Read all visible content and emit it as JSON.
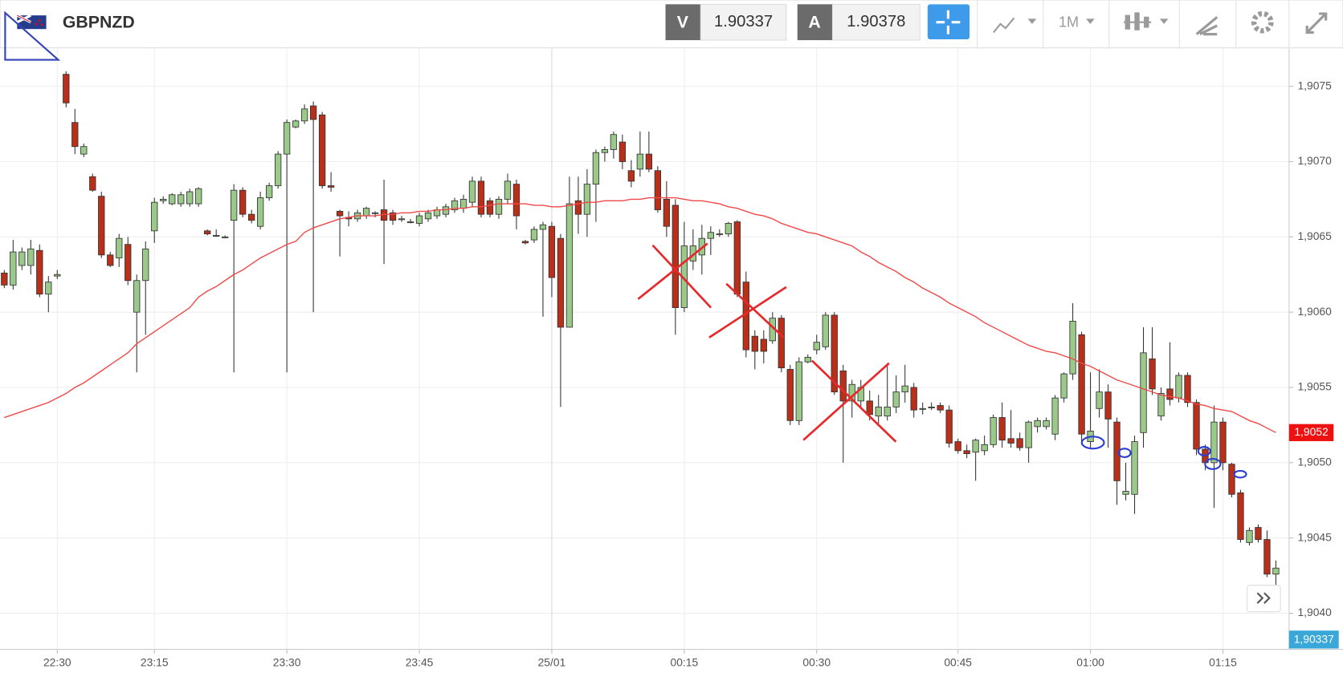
{
  "toolbar": {
    "symbol": "GBPNZD",
    "bid_tag": "V",
    "bid": "1.90337",
    "ask_tag": "A",
    "ask": "1.90378",
    "timeframe": "1M"
  },
  "chart_data": {
    "type": "candlestick",
    "categories": [
      null,
      null,
      null,
      null,
      null,
      null,
      "22:30",
      null,
      null,
      null,
      null,
      null,
      null,
      null,
      null,
      null,
      null,
      "23:15",
      null,
      null,
      null,
      null,
      null,
      null,
      null,
      null,
      null,
      null,
      null,
      null,
      null,
      null,
      "23:30",
      null,
      null,
      null,
      null,
      null,
      null,
      null,
      null,
      null,
      null,
      null,
      null,
      null,
      null,
      "23:45",
      null,
      null,
      null,
      null,
      null,
      null,
      null,
      null,
      null,
      null,
      null,
      null,
      null,
      null,
      "25/01",
      null,
      null,
      null,
      null,
      null,
      null,
      null,
      null,
      null,
      null,
      null,
      null,
      null,
      null,
      "00:15",
      null,
      null,
      null,
      null,
      null,
      null,
      null,
      null,
      null,
      null,
      null,
      null,
      null,
      null,
      "00:30",
      null,
      null,
      null,
      null,
      null,
      null,
      null,
      null,
      null,
      null,
      null,
      null,
      null,
      null,
      null,
      "00:45",
      null,
      null,
      null,
      null,
      null,
      null,
      null,
      null,
      null,
      null,
      null,
      null,
      null,
      null,
      "01:00",
      null,
      null,
      null,
      null,
      null,
      null,
      null,
      null,
      null,
      null,
      null,
      null,
      null,
      null,
      "01:15",
      null,
      null,
      null,
      null,
      null,
      null
    ],
    "open": [
      1.90626,
      1.90618,
      1.90631,
      1.90631,
      1.90641,
      1.90612,
      1.90624,
      1.90758,
      1.90726,
      1.90705,
      1.9069,
      1.90677,
      1.90638,
      1.90636,
      1.90645,
      1.906,
      1.90621,
      1.90654,
      1.90674,
      1.90672,
      1.90672,
      1.90672,
      1.90672,
      1.90654,
      1.90651,
      1.9065,
      1.90661,
      1.90681,
      1.90665,
      1.90657,
      1.90676,
      1.90684,
      1.90705,
      1.90723,
      1.90727,
      1.90737,
      1.90731,
      1.90684,
      1.90667,
      1.90663,
      1.90662,
      1.90664,
      1.90666,
      1.90668,
      1.90666,
      1.90662,
      1.9066,
      1.90659,
      1.90662,
      1.90664,
      1.90665,
      1.90668,
      1.90669,
      1.90673,
      1.90687,
      1.90674,
      1.90665,
      1.90675,
      1.90685,
      1.90647,
      1.90648,
      1.90655,
      1.90657,
      1.90649,
      1.9059,
      1.90674,
      1.90665,
      1.90685,
      1.90706,
      1.90708,
      1.90713,
      1.90694,
      1.90695,
      1.90705,
      1.90694,
      1.90675,
      1.90671,
      1.90603,
      1.90634,
      1.90638,
      1.90649,
      1.90652,
      1.90652,
      1.9066,
      1.9062,
      1.90584,
      1.90582,
      1.90581,
      1.90596,
      1.90562,
      1.90528,
      1.90567,
      1.90575,
      1.90577,
      1.90598,
      1.90561,
      1.90541,
      1.90541,
      1.90541,
      1.90531,
      1.90531,
      1.90537,
      1.90547,
      1.9055,
      1.90536,
      1.90537,
      1.90538,
      1.90535,
      1.90514,
      1.90508,
      1.90507,
      1.90508,
      1.90512,
      1.9053,
      1.90516,
      1.90516,
      1.9051,
      1.90524,
      1.90524,
      1.90519,
      1.90543,
      1.90559,
      1.90585,
      1.90514,
      1.90536,
      1.90547,
      1.90527,
      1.90479,
      1.90479,
      1.9052,
      1.90569,
      1.90531,
      1.90549,
      1.90543,
      1.90558,
      1.9054,
      1.90509,
      1.905,
      1.90527,
      1.90499,
      1.9048,
      1.90447,
      1.90457,
      1.90449,
      1.90426
    ],
    "high": [
      1.90628,
      1.90648,
      1.90643,
      1.90648,
      1.90645,
      1.90624,
      1.90628,
      1.9076,
      1.90735,
      1.90712,
      1.90692,
      1.9068,
      1.9064,
      1.90652,
      1.9065,
      1.90625,
      1.90647,
      1.90676,
      1.90677,
      1.90679,
      1.9068,
      1.90682,
      1.90683,
      1.90655,
      1.90655,
      1.90651,
      1.90685,
      1.90683,
      1.90668,
      1.9068,
      1.90686,
      1.90707,
      1.90728,
      1.90728,
      1.90738,
      1.9074,
      1.90733,
      1.90693,
      1.90668,
      1.90667,
      1.90668,
      1.9067,
      1.90667,
      1.90688,
      1.90668,
      1.90664,
      1.90662,
      1.90666,
      1.90668,
      1.9067,
      1.90672,
      1.90676,
      1.90678,
      1.9069,
      1.9069,
      1.90676,
      1.90677,
      1.90692,
      1.90688,
      1.90648,
      1.90657,
      1.9066,
      1.9066,
      1.90652,
      1.9069,
      1.9069,
      1.90695,
      1.90708,
      1.9071,
      1.9072,
      1.90718,
      1.90701,
      1.9072,
      1.9072,
      1.90697,
      1.90687,
      1.90675,
      1.9066,
      1.90655,
      1.90658,
      1.90657,
      1.90655,
      1.9066,
      1.90661,
      1.90627,
      1.90588,
      1.90588,
      1.906,
      1.90598,
      1.90565,
      1.9057,
      1.90572,
      1.90585,
      1.906,
      1.906,
      1.90565,
      1.90555,
      1.90555,
      1.90548,
      1.90545,
      1.90565,
      1.90558,
      1.90565,
      1.90553,
      1.9054,
      1.9054,
      1.9054,
      1.90538,
      1.90516,
      1.90512,
      1.90516,
      1.90518,
      1.90532,
      1.9054,
      1.90535,
      1.9052,
      1.90528,
      1.9053,
      1.9053,
      1.90545,
      1.9056,
      1.90606,
      1.90587,
      1.9056,
      1.90562,
      1.90552,
      1.9053,
      1.905,
      1.90518,
      1.9059,
      1.9059,
      1.9055,
      1.9058,
      1.9056,
      1.9056,
      1.90542,
      1.90512,
      1.90538,
      1.9053,
      1.905,
      1.90482,
      1.90457,
      1.90459,
      1.90455,
      1.90435
    ],
    "low": [
      1.90616,
      1.90615,
      1.90628,
      1.90625,
      1.9061,
      1.906,
      1.90622,
      1.90736,
      1.90705,
      1.90703,
      1.9068,
      1.90636,
      1.9063,
      1.9063,
      1.90618,
      1.9056,
      1.90585,
      1.90646,
      1.90672,
      1.90671,
      1.9067,
      1.9067,
      1.9067,
      1.90651,
      1.9065,
      1.90649,
      1.9056,
      1.90663,
      1.90659,
      1.90655,
      1.90674,
      1.90682,
      1.9056,
      1.90722,
      1.90725,
      1.906,
      1.90682,
      1.9068,
      1.90637,
      1.90657,
      1.9066,
      1.90662,
      1.90663,
      1.90632,
      1.90658,
      1.9066,
      1.90659,
      1.90657,
      1.9066,
      1.90662,
      1.90663,
      1.90666,
      1.90666,
      1.9067,
      1.90663,
      1.90663,
      1.90662,
      1.90672,
      1.90655,
      1.90645,
      1.90646,
      1.90597,
      1.9061,
      1.90537,
      1.9059,
      1.90652,
      1.9065,
      1.9066,
      1.907,
      1.90702,
      1.90695,
      1.90683,
      1.9069,
      1.90693,
      1.90666,
      1.9065,
      1.90585,
      1.906,
      1.90628,
      1.90625,
      1.90638,
      1.9065,
      1.9065,
      1.9061,
      1.9057,
      1.90562,
      1.90566,
      1.90579,
      1.9056,
      1.90525,
      1.90525,
      1.90566,
      1.90572,
      1.90575,
      1.90545,
      1.905,
      1.9053,
      1.90537,
      1.90528,
      1.90526,
      1.90528,
      1.90533,
      1.9054,
      1.9053,
      1.90532,
      1.90535,
      1.90533,
      1.9051,
      1.90506,
      1.90503,
      1.90488,
      1.90505,
      1.9051,
      1.9051,
      1.9051,
      1.90508,
      1.905,
      1.9052,
      1.90522,
      1.90515,
      1.9054,
      1.90555,
      1.90512,
      1.9051,
      1.9053,
      1.9051,
      1.90472,
      1.90475,
      1.90466,
      1.9051,
      1.90545,
      1.90528,
      1.90538,
      1.9054,
      1.90537,
      1.90505,
      1.90495,
      1.9047,
      1.90495,
      1.90477,
      1.90447,
      1.90445,
      1.90447,
      1.90424,
      1.90405
    ],
    "close": [
      1.90618,
      1.9064,
      1.9064,
      1.90642,
      1.90612,
      1.9062,
      1.90625,
      1.90739,
      1.9071,
      1.9071,
      1.90681,
      1.90638,
      1.90631,
      1.90649,
      1.90621,
      1.90621,
      1.90642,
      1.90673,
      1.90675,
      1.90678,
      1.90678,
      1.9068,
      1.90682,
      1.90652,
      1.90651,
      1.9065,
      1.90681,
      1.90665,
      1.90661,
      1.90676,
      1.90684,
      1.90705,
      1.90726,
      1.90727,
      1.90735,
      1.90728,
      1.90684,
      1.90683,
      1.90664,
      1.90662,
      1.90666,
      1.90669,
      1.90666,
      1.90661,
      1.90661,
      1.90662,
      1.9066,
      1.90664,
      1.90666,
      1.90668,
      1.9067,
      1.90674,
      1.90675,
      1.90687,
      1.90665,
      1.90665,
      1.90675,
      1.90687,
      1.90664,
      1.90646,
      1.90655,
      1.90658,
      1.90623,
      1.9059,
      1.90672,
      1.90665,
      1.90685,
      1.90706,
      1.90708,
      1.90718,
      1.907,
      1.90687,
      1.90705,
      1.90695,
      1.90668,
      1.90657,
      1.90603,
      1.90644,
      1.90644,
      1.90649,
      1.90653,
      1.90652,
      1.90659,
      1.90612,
      1.90575,
      1.90574,
      1.90574,
      1.90596,
      1.90563,
      1.90528,
      1.90567,
      1.9057,
      1.9058,
      1.90598,
      1.90547,
      1.90541,
      1.90552,
      1.9055,
      1.90532,
      1.90537,
      1.90537,
      1.90547,
      1.90551,
      1.90535,
      1.90536,
      1.90537,
      1.90535,
      1.90513,
      1.90508,
      1.90506,
      1.90515,
      1.90512,
      1.9053,
      1.90515,
      1.90513,
      1.9051,
      1.90527,
      1.90528,
      1.90528,
      1.90543,
      1.90559,
      1.90594,
      1.90519,
      1.90521,
      1.90547,
      1.90529,
      1.90488,
      1.90481,
      1.90514,
      1.90573,
      1.90549,
      1.90546,
      1.90542,
      1.90558,
      1.9054,
      1.90509,
      1.905,
      1.90527,
      1.905,
      1.90479,
      1.90449,
      1.90455,
      1.90449,
      1.90426,
      1.9043
    ],
    "up_color": "#9bc98a",
    "down_color": "#b8301a",
    "ma": {
      "color": "#f04848",
      "values": [
        1.9053,
        1.90532,
        1.90534,
        1.90536,
        1.90538,
        1.9054,
        1.90543,
        1.90546,
        1.9055,
        1.90553,
        1.90557,
        1.90561,
        1.90565,
        1.90569,
        1.90573,
        1.90579,
        1.90583,
        1.90587,
        1.90591,
        1.90595,
        1.90599,
        1.90603,
        1.9061,
        1.90614,
        1.90617,
        1.90621,
        1.90625,
        1.90628,
        1.90632,
        1.90636,
        1.90639,
        1.90642,
        1.90645,
        1.90647,
        1.90653,
        1.90656,
        1.90658,
        1.9066,
        1.90662,
        1.90663,
        1.90664,
        1.90664,
        1.90664,
        1.90665,
        1.90665,
        1.90666,
        1.90666,
        1.90667,
        1.90667,
        1.90668,
        1.90668,
        1.90669,
        1.90669,
        1.9067,
        1.9067,
        1.90671,
        1.90672,
        1.90672,
        1.90672,
        1.90672,
        1.90671,
        1.90671,
        1.9067,
        1.9067,
        1.90671,
        1.90672,
        1.90673,
        1.90673,
        1.90674,
        1.90674,
        1.90674,
        1.90675,
        1.90675,
        1.90676,
        1.90676,
        1.90676,
        1.90676,
        1.90675,
        1.90674,
        1.90674,
        1.90673,
        1.90672,
        1.9067,
        1.90669,
        1.90667,
        1.90665,
        1.90664,
        1.90662,
        1.90659,
        1.90657,
        1.90655,
        1.90653,
        1.90652,
        1.9065,
        1.90648,
        1.90646,
        1.90644,
        1.9064,
        1.90637,
        1.90633,
        1.9063,
        1.90627,
        1.90623,
        1.9062,
        1.90616,
        1.90613,
        1.9061,
        1.90606,
        1.90603,
        1.906,
        1.90597,
        1.90593,
        1.9059,
        1.90587,
        1.90584,
        1.90581,
        1.90578,
        1.90576,
        1.90574,
        1.90573,
        1.90571,
        1.90569,
        1.90566,
        1.90564,
        1.90561,
        1.90558,
        1.90555,
        1.90553,
        1.90551,
        1.90549,
        1.90547,
        1.90545,
        1.90544,
        1.90543,
        1.90541,
        1.90539,
        1.90538,
        1.90536,
        1.90535,
        1.90534,
        1.90531,
        1.90528,
        1.90526,
        1.90523,
        1.9052
      ]
    },
    "ylim": [
      1.90376,
      1.90775
    ],
    "yticks": [
      {
        "value": 1.904,
        "label": "1,9040"
      },
      {
        "value": 1.9045,
        "label": "1,9045"
      },
      {
        "value": 1.905,
        "label": "1,9050"
      },
      {
        "value": 1.9055,
        "label": "1,9055"
      },
      {
        "value": 1.906,
        "label": "1,9060"
      },
      {
        "value": 1.9065,
        "label": "1,9065"
      },
      {
        "value": 1.907,
        "label": "1,9070"
      },
      {
        "value": 1.9075,
        "label": "1,9075"
      }
    ],
    "grid": true,
    "ma_label": {
      "value": 1.9052,
      "label": "1,9052"
    },
    "last_price_label": "1,90337"
  }
}
